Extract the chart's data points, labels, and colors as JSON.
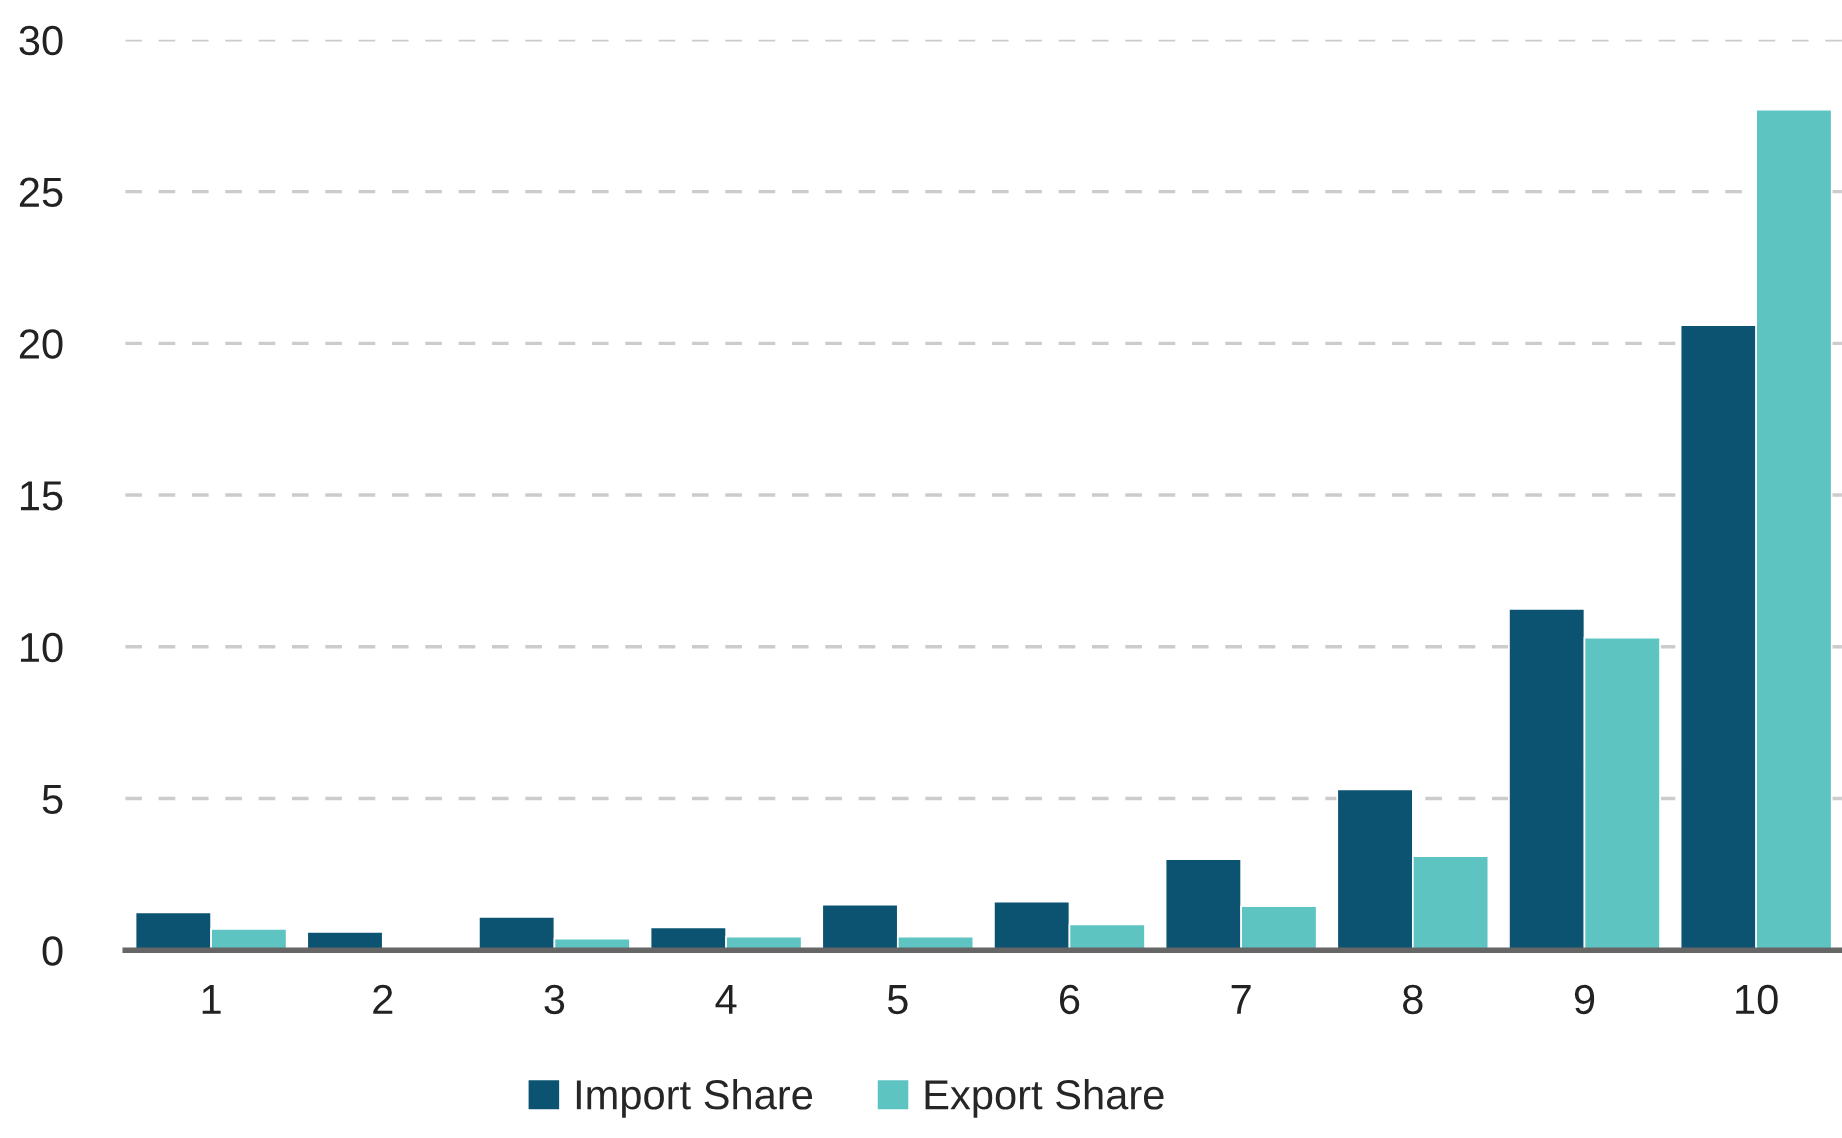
{
  "chart_data": {
    "type": "bar",
    "categories": [
      "1",
      "2",
      "3",
      "4",
      "5",
      "6",
      "7",
      "8",
      "9",
      "10"
    ],
    "series": [
      {
        "name": "Import Share",
        "color": "#0b5370",
        "values": [
          1.25,
          0.6,
          1.1,
          0.75,
          1.5,
          1.6,
          3.0,
          5.3,
          11.25,
          20.6
        ]
      },
      {
        "name": "Export Share",
        "color": "#5ec4c2",
        "values": [
          0.7,
          null,
          0.38,
          0.45,
          0.45,
          0.85,
          1.45,
          3.1,
          10.3,
          27.7
        ]
      }
    ],
    "ylim": [
      0,
      30
    ],
    "yticks": [
      0,
      5,
      10,
      15,
      20,
      25,
      30
    ],
    "grid": "y",
    "legend": "bottom"
  }
}
